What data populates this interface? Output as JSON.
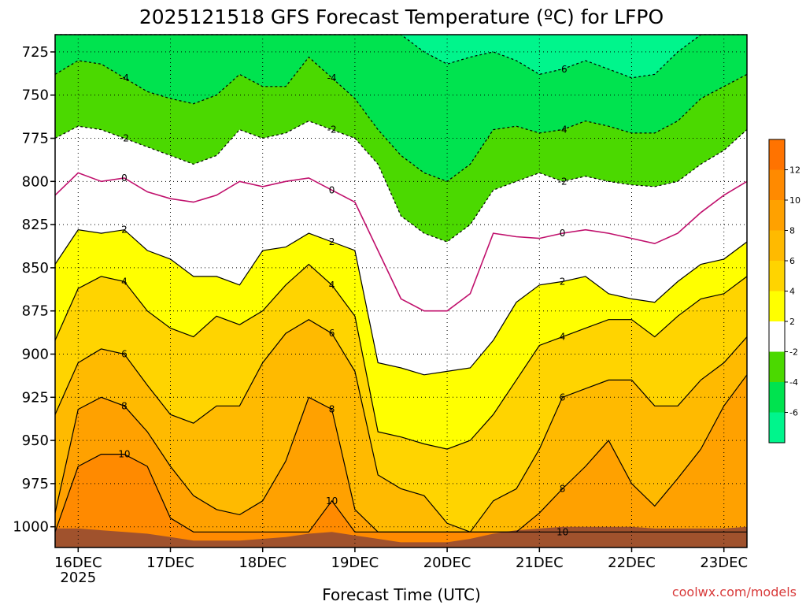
{
  "chart_data": {
    "type": "heatmap",
    "title": "2025121518 GFS Forecast Temperature (ºC) for LFPO",
    "xlabel": "Forecast Time (UTC)",
    "ylabel": "",
    "credit": "coolwx.com/models",
    "y_scale": "linear-inverted",
    "y_units": "hPa",
    "ylim": [
      1012,
      715
    ],
    "y_ticks": [
      725,
      750,
      775,
      800,
      825,
      850,
      875,
      900,
      925,
      950,
      975,
      1000
    ],
    "x_ticks": [
      "16DEC",
      "17DEC",
      "18DEC",
      "19DEC",
      "20DEC",
      "21DEC",
      "22DEC",
      "23DEC"
    ],
    "x_ticks_sub": [
      "2025",
      "",
      "",
      "",
      "",
      "",
      "",
      ""
    ],
    "x_range_days": [
      15.75,
      23.25
    ],
    "contour_levels": [
      -6,
      -4,
      -2,
      0,
      2,
      4,
      6,
      8,
      10,
      12
    ],
    "colorbar": {
      "ticks": [
        12,
        10,
        8,
        6,
        4,
        2,
        -2,
        -4,
        -6
      ],
      "bands": [
        {
          "from": 12,
          "to": 14,
          "color": "#ff7300"
        },
        {
          "from": 10,
          "to": 12,
          "color": "#ff8a00"
        },
        {
          "from": 8,
          "to": 10,
          "color": "#ffa100"
        },
        {
          "from": 6,
          "to": 8,
          "color": "#ffba00"
        },
        {
          "from": 4,
          "to": 6,
          "color": "#ffd400"
        },
        {
          "from": 2,
          "to": 4,
          "color": "#ffff00"
        },
        {
          "from": -2,
          "to": 2,
          "color": "#ffffff"
        },
        {
          "from": -4,
          "to": -2,
          "color": "#4bd900"
        },
        {
          "from": -6,
          "to": -4,
          "color": "#00e34f"
        },
        {
          "from": -8,
          "to": -6,
          "color": "#00f58c"
        }
      ]
    },
    "ground_color": "#a0522d",
    "freezing_line_color": "#c0106c",
    "isotherm_times": [
      15.75,
      16.0,
      16.25,
      16.5,
      16.75,
      17.0,
      17.25,
      17.5,
      17.75,
      18.0,
      18.25,
      18.5,
      18.75,
      19.0,
      19.25,
      19.5,
      19.75,
      20.0,
      20.25,
      20.5,
      20.75,
      21.0,
      21.25,
      21.5,
      21.75,
      22.0,
      22.25,
      22.5,
      22.75,
      23.0,
      23.25
    ],
    "isotherms": [
      {
        "level": 10,
        "p": [
          1003,
          965,
          958,
          958,
          965,
          995,
          1003,
          1003,
          1003,
          1003,
          1003,
          1003,
          985,
          1003,
          1003,
          1003,
          1003,
          1003,
          1003,
          1003,
          1003,
          1003,
          1003,
          1003,
          1003,
          1003,
          1003,
          1003,
          1003,
          1003,
          1003
        ]
      },
      {
        "level": 8,
        "p": [
          992,
          932,
          925,
          930,
          945,
          965,
          982,
          990,
          993,
          985,
          962,
          925,
          932,
          990,
          1003,
          1003,
          1003,
          1003,
          1003,
          1003,
          1003,
          992,
          978,
          965,
          950,
          975,
          988,
          972,
          955,
          930,
          912
        ]
      },
      {
        "level": 6,
        "p": [
          935,
          905,
          897,
          900,
          918,
          935,
          940,
          930,
          930,
          905,
          888,
          880,
          888,
          910,
          970,
          978,
          982,
          998,
          1003,
          985,
          978,
          955,
          925,
          920,
          915,
          915,
          930,
          930,
          915,
          905,
          890
        ]
      },
      {
        "level": 4,
        "p": [
          892,
          862,
          855,
          858,
          875,
          885,
          890,
          878,
          883,
          875,
          860,
          848,
          860,
          878,
          945,
          948,
          952,
          955,
          950,
          935,
          915,
          895,
          890,
          885,
          880,
          880,
          890,
          878,
          868,
          865,
          855
        ]
      },
      {
        "level": 2,
        "p": [
          848,
          828,
          830,
          828,
          840,
          845,
          855,
          855,
          860,
          840,
          838,
          830,
          835,
          840,
          905,
          908,
          912,
          910,
          908,
          892,
          870,
          860,
          858,
          855,
          865,
          868,
          870,
          858,
          848,
          845,
          835
        ]
      },
      {
        "level": 0,
        "p": [
          808,
          795,
          800,
          798,
          806,
          810,
          812,
          808,
          800,
          803,
          800,
          798,
          805,
          812,
          840,
          868,
          875,
          875,
          865,
          830,
          832,
          833,
          830,
          828,
          830,
          833,
          836,
          830,
          818,
          808,
          800
        ]
      },
      {
        "level": -2,
        "p": [
          775,
          768,
          770,
          775,
          780,
          785,
          790,
          785,
          770,
          775,
          772,
          765,
          770,
          775,
          790,
          820,
          830,
          835,
          825,
          805,
          800,
          795,
          800,
          797,
          800,
          802,
          803,
          800,
          790,
          782,
          770
        ]
      },
      {
        "level": -4,
        "p": [
          738,
          730,
          732,
          740,
          748,
          752,
          755,
          750,
          738,
          745,
          745,
          728,
          740,
          752,
          770,
          785,
          795,
          800,
          790,
          770,
          768,
          772,
          770,
          765,
          768,
          772,
          772,
          765,
          752,
          745,
          738
        ]
      },
      {
        "level": -6,
        "p": [
          715,
          715,
          715,
          715,
          715,
          715,
          715,
          715,
          715,
          715,
          715,
          715,
          715,
          715,
          715,
          715,
          725,
          732,
          728,
          725,
          730,
          738,
          735,
          730,
          735,
          740,
          738,
          725,
          715,
          715,
          715
        ]
      }
    ],
    "ground": {
      "p": [
        1001,
        1001,
        1002,
        1003,
        1004,
        1006,
        1008,
        1008,
        1008,
        1007,
        1006,
        1004,
        1003,
        1005,
        1007,
        1009,
        1009,
        1009,
        1007,
        1004,
        1002,
        1001,
        1000,
        1000,
        1000,
        1000,
        1001,
        1001,
        1001,
        1001,
        1000
      ]
    }
  }
}
